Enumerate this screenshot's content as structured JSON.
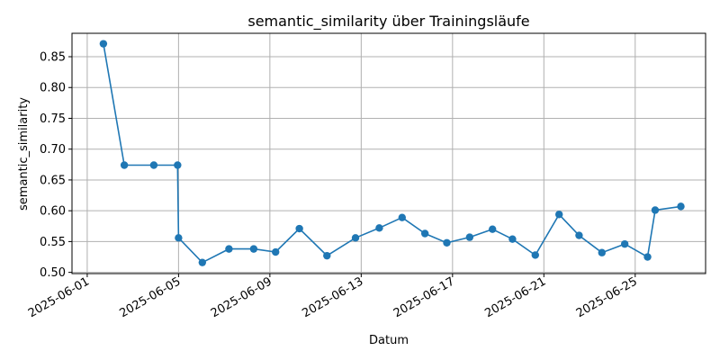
{
  "chart_data": {
    "type": "line",
    "title": "semantic_similarity über Trainingsläufe",
    "xlabel": "Datum",
    "ylabel": "semantic_similarity",
    "grid": true,
    "x_axis": "date",
    "xlim": [
      "2025-05-31T08:00",
      "2025-06-28T02:00"
    ],
    "ylim": [
      0.498,
      0.888
    ],
    "xticks": [
      "2025-06-01",
      "2025-06-05",
      "2025-06-09",
      "2025-06-13",
      "2025-06-17",
      "2025-06-21",
      "2025-06-25"
    ],
    "yticks": [
      0.5,
      0.55,
      0.6,
      0.65,
      0.7,
      0.75,
      0.8,
      0.85
    ],
    "series": [
      {
        "color": "#1f77b4",
        "x": [
          "2025-06-01T17:00",
          "2025-06-02T15:00",
          "2025-06-03T22:00",
          "2025-06-04T23:00",
          "2025-06-05T00:00",
          "2025-06-06T01:00",
          "2025-06-07T05:00",
          "2025-06-08T07:00",
          "2025-06-09T06:00",
          "2025-06-10T07:00",
          "2025-06-11T12:00",
          "2025-06-12T18:00",
          "2025-06-13T19:00",
          "2025-06-14T19:00",
          "2025-06-15T19:00",
          "2025-06-16T18:00",
          "2025-06-17T18:00",
          "2025-06-18T18:00",
          "2025-06-19T15:00",
          "2025-06-20T15:00",
          "2025-06-21T16:00",
          "2025-06-22T13:00",
          "2025-06-23T13:00",
          "2025-06-24T13:00",
          "2025-06-25T13:00",
          "2025-06-25T21:00",
          "2025-06-27T00:00"
        ],
        "y": [
          0.871,
          0.674,
          0.674,
          0.674,
          0.556,
          0.516,
          0.538,
          0.538,
          0.533,
          0.571,
          0.527,
          0.556,
          0.572,
          0.589,
          0.563,
          0.548,
          0.557,
          0.57,
          0.554,
          0.528,
          0.594,
          0.56,
          0.532,
          0.546,
          0.525,
          0.601,
          0.607
        ]
      }
    ]
  }
}
